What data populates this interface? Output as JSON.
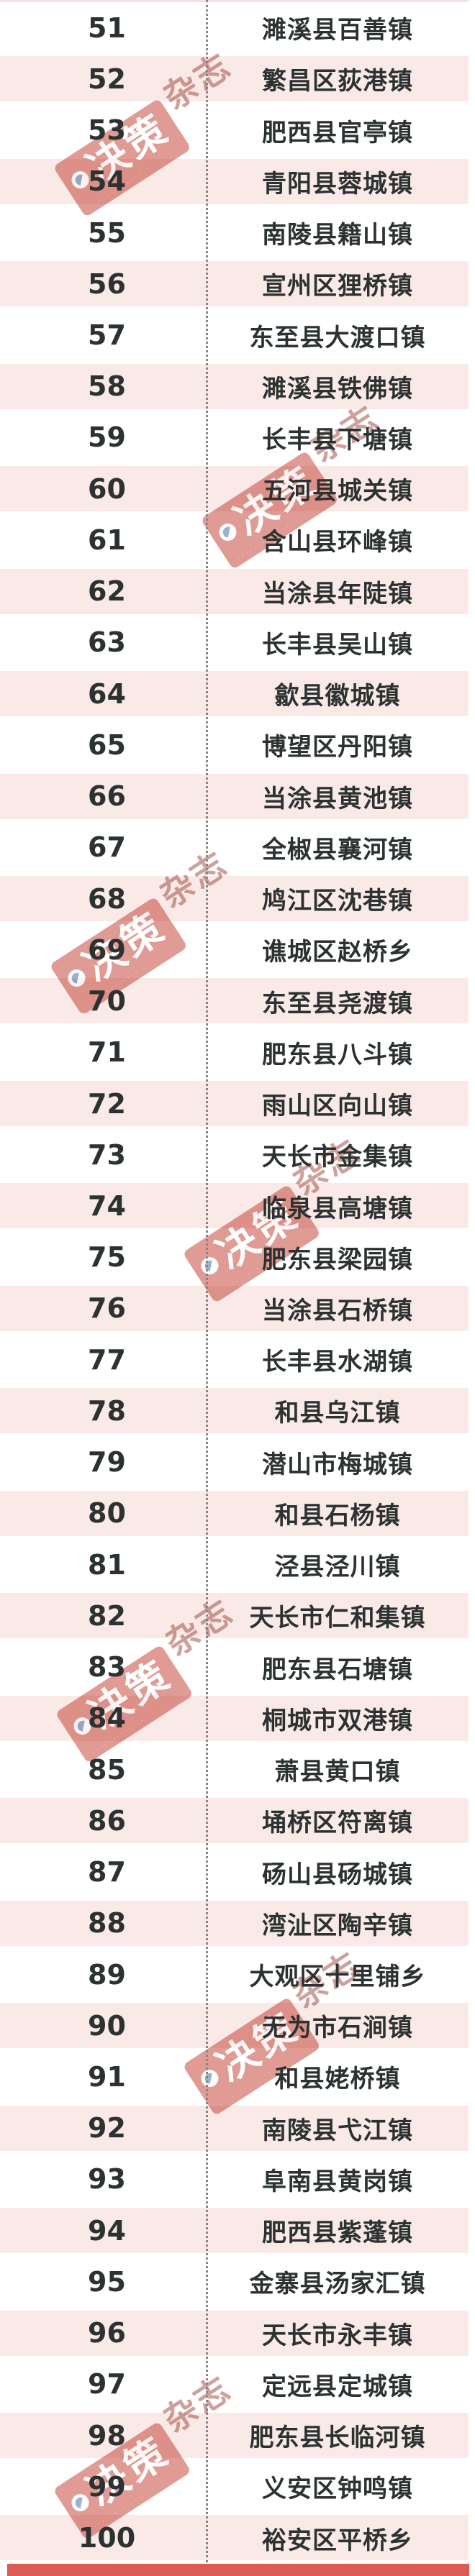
{
  "chart_data": {
    "type": "table",
    "description_visible_content_only": "ranked list, ranks 51-100, town names",
    "rows": [
      {
        "rank": "51",
        "name": "濉溪县百善镇"
      },
      {
        "rank": "52",
        "name": "繁昌区荻港镇"
      },
      {
        "rank": "53",
        "name": "肥西县官亭镇"
      },
      {
        "rank": "54",
        "name": "青阳县蓉城镇"
      },
      {
        "rank": "55",
        "name": "南陵县籍山镇"
      },
      {
        "rank": "56",
        "name": "宣州区狸桥镇"
      },
      {
        "rank": "57",
        "name": "东至县大渡口镇"
      },
      {
        "rank": "58",
        "name": "濉溪县铁佛镇"
      },
      {
        "rank": "59",
        "name": "长丰县下塘镇"
      },
      {
        "rank": "60",
        "name": "五河县城关镇"
      },
      {
        "rank": "61",
        "name": "含山县环峰镇"
      },
      {
        "rank": "62",
        "name": "当涂县年陡镇"
      },
      {
        "rank": "63",
        "name": "长丰县吴山镇"
      },
      {
        "rank": "64",
        "name": "歙县徽城镇"
      },
      {
        "rank": "65",
        "name": "博望区丹阳镇"
      },
      {
        "rank": "66",
        "name": "当涂县黄池镇"
      },
      {
        "rank": "67",
        "name": "全椒县襄河镇"
      },
      {
        "rank": "68",
        "name": "鸠江区沈巷镇"
      },
      {
        "rank": "69",
        "name": "谯城区赵桥乡"
      },
      {
        "rank": "70",
        "name": "东至县尧渡镇"
      },
      {
        "rank": "71",
        "name": "肥东县八斗镇"
      },
      {
        "rank": "72",
        "name": "雨山区向山镇"
      },
      {
        "rank": "73",
        "name": "天长市金集镇"
      },
      {
        "rank": "74",
        "name": "临泉县高塘镇"
      },
      {
        "rank": "75",
        "name": "肥东县梁园镇"
      },
      {
        "rank": "76",
        "name": "当涂县石桥镇"
      },
      {
        "rank": "77",
        "name": "长丰县水湖镇"
      },
      {
        "rank": "78",
        "name": "和县乌江镇"
      },
      {
        "rank": "79",
        "name": "潜山市梅城镇"
      },
      {
        "rank": "80",
        "name": "和县石杨镇"
      },
      {
        "rank": "81",
        "name": "泾县泾川镇"
      },
      {
        "rank": "82",
        "name": "天长市仁和集镇"
      },
      {
        "rank": "83",
        "name": "肥东县石塘镇"
      },
      {
        "rank": "84",
        "name": "桐城市双港镇"
      },
      {
        "rank": "85",
        "name": "萧县黄口镇"
      },
      {
        "rank": "86",
        "name": "埇桥区符离镇"
      },
      {
        "rank": "87",
        "name": "砀山县砀城镇"
      },
      {
        "rank": "88",
        "name": "湾沚区陶辛镇"
      },
      {
        "rank": "89",
        "name": "大观区十里铺乡"
      },
      {
        "rank": "90",
        "name": "无为市石涧镇"
      },
      {
        "rank": "91",
        "name": "和县姥桥镇"
      },
      {
        "rank": "92",
        "name": "南陵县弋江镇"
      },
      {
        "rank": "93",
        "name": "阜南县黄岗镇"
      },
      {
        "rank": "94",
        "name": "肥西县紫蓬镇"
      },
      {
        "rank": "95",
        "name": "金寨县汤家汇镇"
      },
      {
        "rank": "96",
        "name": "天长市永丰镇"
      },
      {
        "rank": "97",
        "name": "定远县定城镇"
      },
      {
        "rank": "98",
        "name": "肥东县长临河镇"
      },
      {
        "rank": "99",
        "name": "义安区钟鸣镇"
      },
      {
        "rank": "100",
        "name": "裕安区平桥乡"
      }
    ]
  },
  "watermark": {
    "primary": "决策",
    "suffix": "杂志",
    "fine_print": "·············"
  },
  "colors": {
    "row_pink": "#f9e9e7",
    "row_white": "#ffffff",
    "text": "#2b3231",
    "divider_dots": "#858585",
    "footer_bar": "#dc5b55",
    "stamp_red": "#c33a2c",
    "stamp_suffix_red": "#9c453c"
  }
}
